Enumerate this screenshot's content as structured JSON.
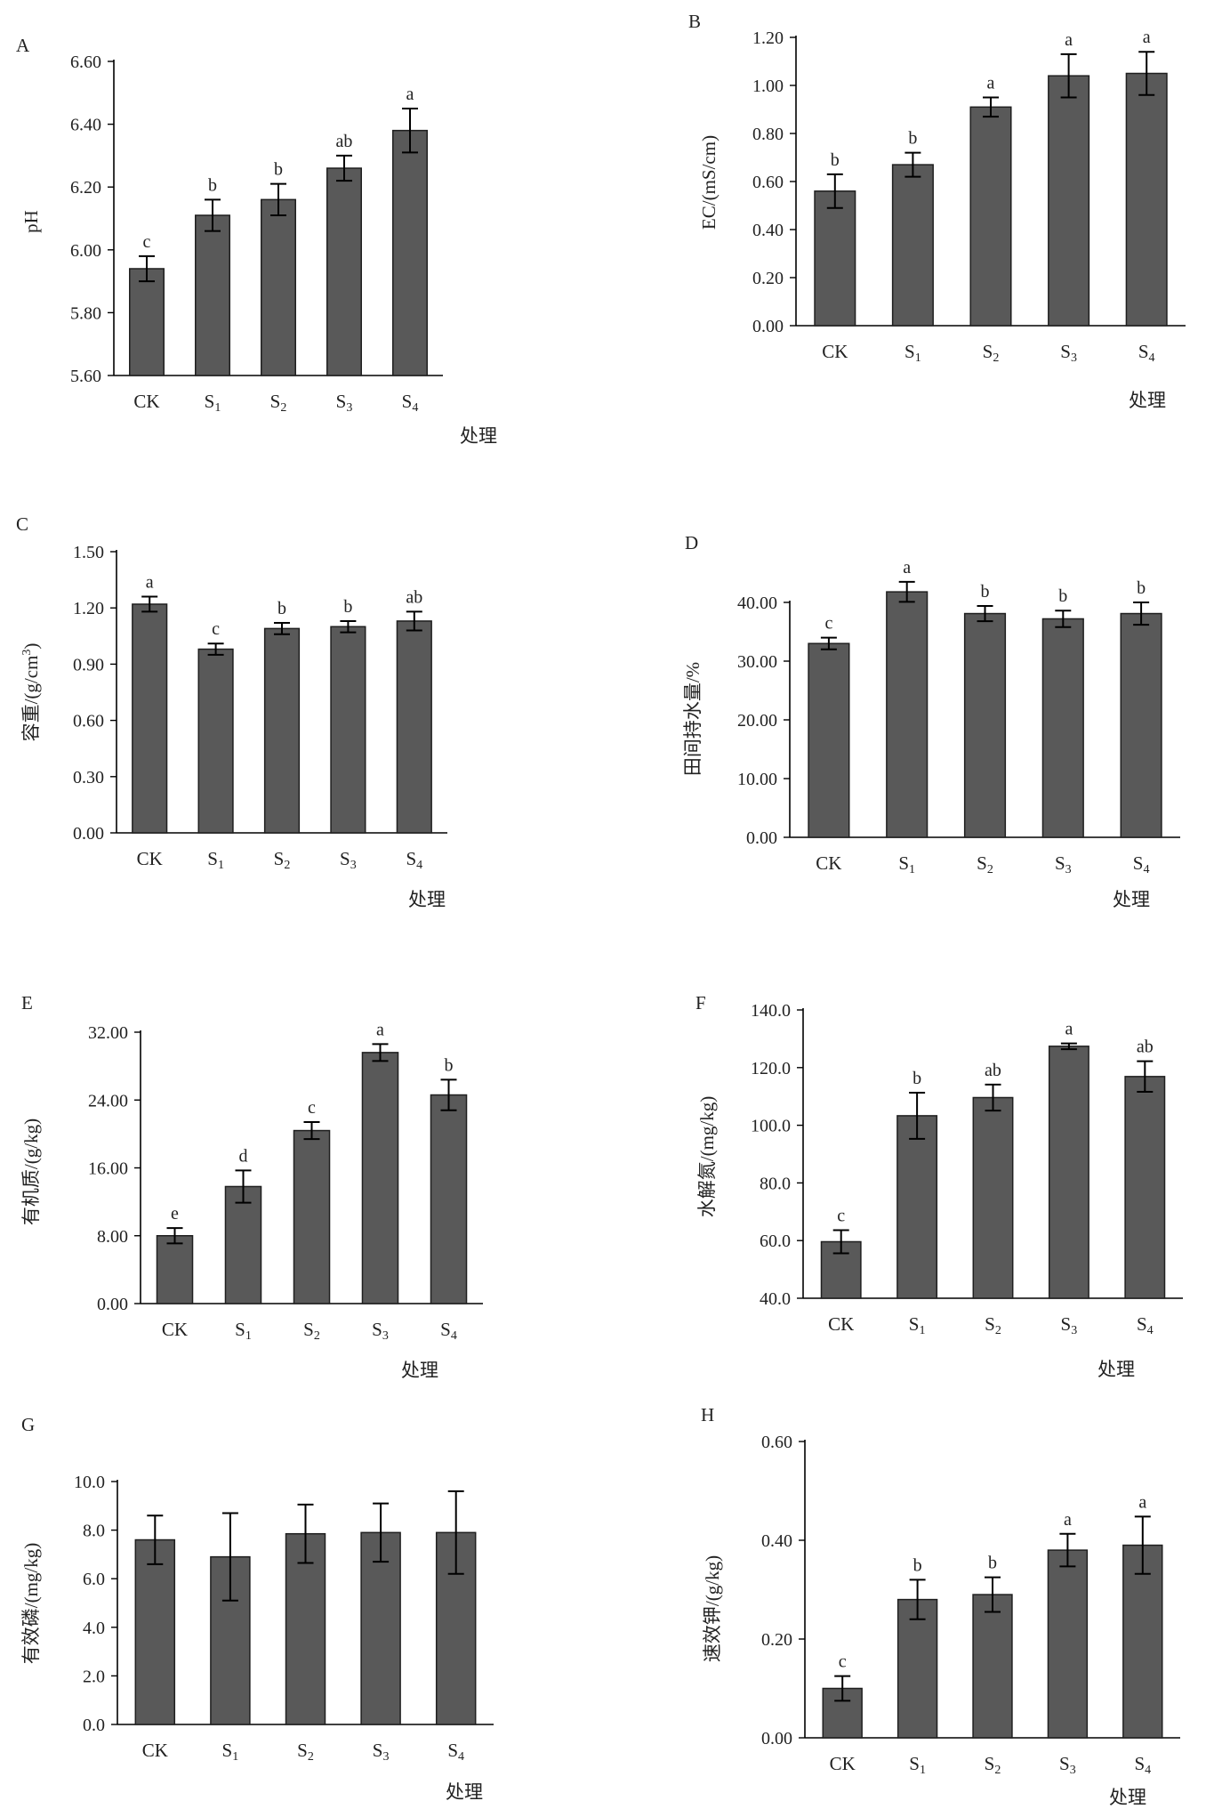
{
  "figure": {
    "colors": {
      "bar_fill": "#595959",
      "bar_stroke": "#1f1f1f",
      "axis": "#000000",
      "text": "#222222"
    },
    "chart_data": [
      {
        "panel": "A",
        "type": "bar",
        "categories": [
          "CK",
          "S1",
          "S2",
          "S3",
          "S4"
        ],
        "ylabel": "pH",
        "xlabel": "处理",
        "ylim": [
          5.6,
          6.6
        ],
        "ticks": [
          "5.60",
          "5.80",
          "6.00",
          "6.20",
          "6.40",
          "6.60"
        ],
        "values": [
          5.94,
          6.11,
          6.16,
          6.26,
          6.38
        ],
        "errors": [
          0.04,
          0.05,
          0.05,
          0.04,
          0.07
        ],
        "significance": [
          "c",
          "b",
          "b",
          "ab",
          "a"
        ]
      },
      {
        "panel": "B",
        "type": "bar",
        "categories": [
          "CK",
          "S1",
          "S2",
          "S3",
          "S4"
        ],
        "ylabel": "EC/(mS/cm)",
        "xlabel": "处理",
        "ylim": [
          0,
          1.2
        ],
        "ticks": [
          "0.00",
          "0.20",
          "0.40",
          "0.60",
          "0.80",
          "1.00",
          "1.20"
        ],
        "values": [
          0.56,
          0.67,
          0.91,
          1.04,
          1.05
        ],
        "errors": [
          0.07,
          0.05,
          0.04,
          0.09,
          0.09
        ],
        "significance": [
          "b",
          "b",
          "a",
          "a",
          "a"
        ]
      },
      {
        "panel": "C",
        "type": "bar",
        "categories": [
          "CK",
          "S1",
          "S2",
          "S3",
          "S4"
        ],
        "ylabel": "容重/(g/cm³)",
        "xlabel": "处理",
        "ylim": [
          0,
          1.5
        ],
        "ticks": [
          "0.00",
          "0.30",
          "0.60",
          "0.90",
          "1.20",
          "1.50"
        ],
        "values": [
          1.22,
          0.98,
          1.09,
          1.1,
          1.13
        ],
        "errors": [
          0.04,
          0.03,
          0.03,
          0.03,
          0.05
        ],
        "significance": [
          "a",
          "c",
          "b",
          "b",
          "ab"
        ]
      },
      {
        "panel": "D",
        "type": "bar",
        "categories": [
          "CK",
          "S1",
          "S2",
          "S3",
          "S4"
        ],
        "ylabel": "田间持水量/%",
        "xlabel": "处理",
        "ylim": [
          0,
          40
        ],
        "ticks": [
          "0.00",
          "10.00",
          "20.00",
          "30.00",
          "40.00"
        ],
        "values": [
          33.0,
          41.8,
          38.1,
          37.2,
          38.1
        ],
        "errors": [
          1.0,
          1.7,
          1.3,
          1.4,
          1.9
        ],
        "significance": [
          "c",
          "a",
          "b",
          "b",
          "b"
        ]
      },
      {
        "panel": "E",
        "type": "bar",
        "categories": [
          "CK",
          "S1",
          "S2",
          "S3",
          "S4"
        ],
        "ylabel": "有机质/(g/kg)",
        "xlabel": "处理",
        "ylim": [
          0,
          32
        ],
        "ticks": [
          "0.00",
          "8.00",
          "16.00",
          "24.00",
          "32.00"
        ],
        "values": [
          8.0,
          13.8,
          20.4,
          29.6,
          24.6
        ],
        "errors": [
          0.9,
          1.9,
          1.0,
          1.0,
          1.8
        ],
        "significance": [
          "e",
          "d",
          "c",
          "a",
          "b"
        ]
      },
      {
        "panel": "F",
        "type": "bar",
        "categories": [
          "CK",
          "S1",
          "S2",
          "S3",
          "S4"
        ],
        "ylabel": "水解氮/(mg/kg)",
        "xlabel": "处理",
        "ylim": [
          40,
          140
        ],
        "ticks": [
          "40.0",
          "60.0",
          "80.0",
          "100.0",
          "120.0",
          "140.0"
        ],
        "values": [
          59.6,
          103.3,
          109.6,
          127.4,
          116.9
        ],
        "errors": [
          4.0,
          8.0,
          4.5,
          1.0,
          5.3
        ],
        "significance": [
          "c",
          "b",
          "ab",
          "a",
          "ab"
        ]
      },
      {
        "panel": "G",
        "type": "bar",
        "categories": [
          "CK",
          "S1",
          "S2",
          "S3",
          "S4"
        ],
        "ylabel": "有效磷/(mg/kg)",
        "xlabel": "处理",
        "ylim": [
          0,
          10
        ],
        "ticks": [
          "0.0",
          "2.0",
          "4.0",
          "6.0",
          "8.0",
          "10.0"
        ],
        "values": [
          7.6,
          6.9,
          7.85,
          7.9,
          7.9
        ],
        "errors": [
          1.0,
          1.8,
          1.2,
          1.2,
          1.7
        ],
        "significance": [
          "",
          "",
          "",
          "",
          ""
        ]
      },
      {
        "panel": "H",
        "type": "bar",
        "categories": [
          "CK",
          "S1",
          "S2",
          "S3",
          "S4"
        ],
        "ylabel": "速效钾/(g/kg)",
        "xlabel": "处理",
        "ylim": [
          0,
          0.6
        ],
        "ticks": [
          "0.00",
          "0.20",
          "0.40",
          "0.60"
        ],
        "values": [
          0.1,
          0.28,
          0.29,
          0.38,
          0.39
        ],
        "errors": [
          0.025,
          0.04,
          0.035,
          0.033,
          0.058
        ],
        "significance": [
          "c",
          "b",
          "b",
          "a",
          "a"
        ]
      }
    ]
  }
}
